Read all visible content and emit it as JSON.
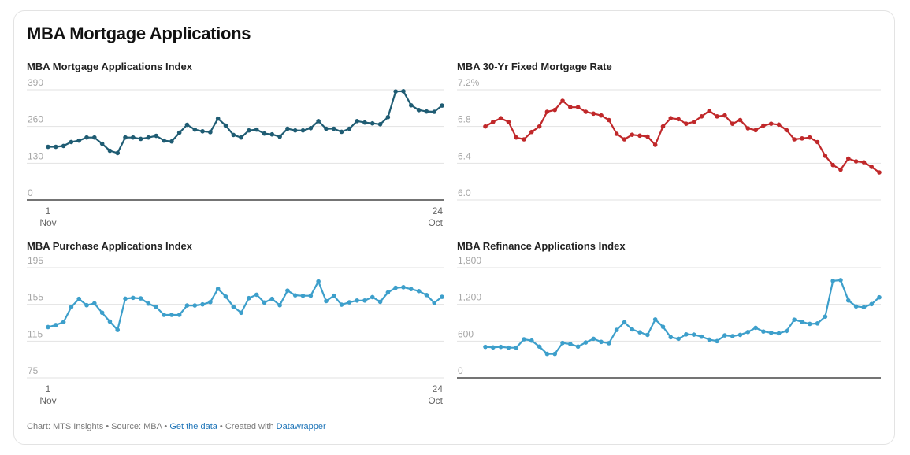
{
  "title": "MBA Mortgage Applications",
  "footer": {
    "prefix": "Chart: MTS Insights • Source: MBA • ",
    "get_data_label": "Get the data",
    "middle": " • Created with ",
    "datawrapper_label": "Datawrapper"
  },
  "chart_data": [
    {
      "type": "line",
      "title": "MBA Mortgage Applications Index",
      "color": "#1f5c73",
      "ylim": [
        0,
        390
      ],
      "yticks": [
        0,
        130,
        260,
        390
      ],
      "ytick_labels": [
        "0",
        "130",
        "260",
        "390"
      ],
      "x_start_label": [
        "1",
        "Nov"
      ],
      "x_end_label": [
        "24",
        "Oct"
      ],
      "baseline": "axis",
      "values": [
        188,
        188,
        191,
        205,
        210,
        221,
        221,
        199,
        174,
        166,
        221,
        221,
        216,
        221,
        227,
        210,
        207,
        238,
        266,
        249,
        243,
        240,
        288,
        263,
        230,
        221,
        246,
        249,
        235,
        232,
        224,
        252,
        246,
        246,
        254,
        279,
        252,
        252,
        241,
        252,
        279,
        274,
        271,
        268,
        293,
        384,
        385,
        335,
        318,
        313,
        312,
        334
      ]
    },
    {
      "type": "line",
      "title": "MBA 30-Yr Fixed Mortgage Rate",
      "color": "#c0282a",
      "ylim": [
        6.0,
        7.2
      ],
      "yticks": [
        6.0,
        6.4,
        6.8,
        7.2
      ],
      "ytick_labels": [
        "6.0",
        "6.4",
        "6.8",
        "7.2%"
      ],
      "baseline": "grid",
      "values": [
        6.8,
        6.85,
        6.89,
        6.85,
        6.68,
        6.66,
        6.74,
        6.8,
        6.96,
        6.98,
        7.08,
        7.01,
        7.01,
        6.96,
        6.94,
        6.92,
        6.87,
        6.72,
        6.66,
        6.71,
        6.7,
        6.69,
        6.6,
        6.8,
        6.89,
        6.88,
        6.83,
        6.85,
        6.91,
        6.97,
        6.91,
        6.92,
        6.83,
        6.87,
        6.78,
        6.76,
        6.81,
        6.83,
        6.82,
        6.76,
        6.66,
        6.67,
        6.68,
        6.63,
        6.48,
        6.38,
        6.33,
        6.45,
        6.42,
        6.41,
        6.36,
        6.3
      ]
    },
    {
      "type": "line",
      "title": "MBA Purchase Applications Index",
      "color": "#3d9fcb",
      "ylim": [
        75,
        195
      ],
      "yticks": [
        75,
        115,
        155,
        195
      ],
      "ytick_labels": [
        "75",
        "115",
        "155",
        "195"
      ],
      "x_start_label": [
        "1",
        "Nov"
      ],
      "x_end_label": [
        "24",
        "Oct"
      ],
      "baseline": "grid",
      "values": [
        130.3,
        132.5,
        135.7,
        152.1,
        161.0,
        154.1,
        156.1,
        145.9,
        136.3,
        127.2,
        161.2,
        162.1,
        161.5,
        155.8,
        152.1,
        143.6,
        143.6,
        143.6,
        153.8,
        153.8,
        155.0,
        157.5,
        172.0,
        163.5,
        152.4,
        145.9,
        161.8,
        165.5,
        157.0,
        161.0,
        154.1,
        170.0,
        164.9,
        164.4,
        164.4,
        180.0,
        158.6,
        164.4,
        154.7,
        157.2,
        159.2,
        159.2,
        162.9,
        157.8,
        168.0,
        173.1,
        173.7,
        171.7,
        169.5,
        165.2,
        156.7,
        163.2
      ]
    },
    {
      "type": "line",
      "title": "MBA Refinance Applications Index",
      "color": "#3d9fcb",
      "ylim": [
        0,
        1800
      ],
      "yticks": [
        0,
        600,
        1200,
        1800
      ],
      "ytick_labels": [
        "0",
        "600",
        "1,200",
        "1,800"
      ],
      "baseline": "axis",
      "values": [
        506,
        498,
        506,
        493,
        493,
        630,
        608,
        511,
        391,
        391,
        570,
        553,
        511,
        578,
        638,
        587,
        566,
        783,
        907,
        792,
        744,
        702,
        953,
        834,
        664,
        638,
        710,
        706,
        672,
        625,
        600,
        693,
        681,
        702,
        748,
        817,
        757,
        736,
        728,
        766,
        949,
        915,
        881,
        889,
        1000,
        1583,
        1596,
        1264,
        1166,
        1153,
        1204,
        1315
      ]
    }
  ]
}
